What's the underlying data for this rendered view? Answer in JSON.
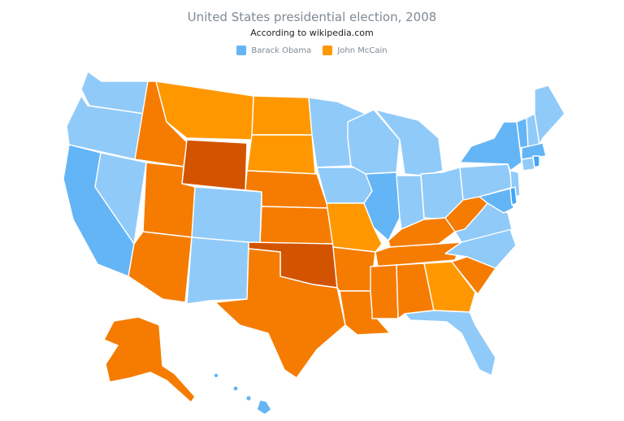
{
  "header": {
    "title": "United States presidential election, 2008",
    "subtitle": "According to wikipedia.com"
  },
  "legend": {
    "obama": {
      "label": "Barack Obama",
      "color": "#64b5f6"
    },
    "mccain": {
      "label": "John McCain",
      "color": "#ff9800"
    }
  },
  "palette": {
    "obama_light": "#90caf9",
    "obama_mid": "#64b5f6",
    "obama_dark": "#42a5f5",
    "mccain_light": "#ff9800",
    "mccain_mid": "#f57c00",
    "mccain_dark": "#d35400"
  },
  "map": {
    "states": [
      {
        "name": "Washington",
        "winner": "Obama"
      },
      {
        "name": "Oregon",
        "winner": "Obama"
      },
      {
        "name": "California",
        "winner": "Obama"
      },
      {
        "name": "Nevada",
        "winner": "Obama"
      },
      {
        "name": "Idaho",
        "winner": "McCain"
      },
      {
        "name": "Montana",
        "winner": "McCain"
      },
      {
        "name": "Wyoming",
        "winner": "McCain"
      },
      {
        "name": "Utah",
        "winner": "McCain"
      },
      {
        "name": "Arizona",
        "winner": "McCain"
      },
      {
        "name": "Colorado",
        "winner": "Obama"
      },
      {
        "name": "New Mexico",
        "winner": "Obama"
      },
      {
        "name": "North Dakota",
        "winner": "McCain"
      },
      {
        "name": "South Dakota",
        "winner": "McCain"
      },
      {
        "name": "Nebraska",
        "winner": "McCain"
      },
      {
        "name": "Kansas",
        "winner": "McCain"
      },
      {
        "name": "Oklahoma",
        "winner": "McCain"
      },
      {
        "name": "Texas",
        "winner": "McCain"
      },
      {
        "name": "Minnesota",
        "winner": "Obama"
      },
      {
        "name": "Iowa",
        "winner": "Obama"
      },
      {
        "name": "Missouri",
        "winner": "McCain"
      },
      {
        "name": "Arkansas",
        "winner": "McCain"
      },
      {
        "name": "Louisiana",
        "winner": "McCain"
      },
      {
        "name": "Wisconsin",
        "winner": "Obama"
      },
      {
        "name": "Illinois",
        "winner": "Obama"
      },
      {
        "name": "Michigan",
        "winner": "Obama"
      },
      {
        "name": "Indiana",
        "winner": "Obama"
      },
      {
        "name": "Ohio",
        "winner": "Obama"
      },
      {
        "name": "Kentucky",
        "winner": "McCain"
      },
      {
        "name": "Tennessee",
        "winner": "McCain"
      },
      {
        "name": "Mississippi",
        "winner": "McCain"
      },
      {
        "name": "Alabama",
        "winner": "McCain"
      },
      {
        "name": "Georgia",
        "winner": "McCain"
      },
      {
        "name": "Florida",
        "winner": "Obama"
      },
      {
        "name": "South Carolina",
        "winner": "McCain"
      },
      {
        "name": "North Carolina",
        "winner": "Obama"
      },
      {
        "name": "Virginia",
        "winner": "Obama"
      },
      {
        "name": "West Virginia",
        "winner": "McCain"
      },
      {
        "name": "Pennsylvania",
        "winner": "Obama"
      },
      {
        "name": "New York",
        "winner": "Obama"
      },
      {
        "name": "New Jersey",
        "winner": "Obama"
      },
      {
        "name": "Maryland",
        "winner": "Obama"
      },
      {
        "name": "Delaware",
        "winner": "Obama"
      },
      {
        "name": "Vermont",
        "winner": "Obama"
      },
      {
        "name": "New Hampshire",
        "winner": "Obama"
      },
      {
        "name": "Maine",
        "winner": "Obama"
      },
      {
        "name": "Massachusetts",
        "winner": "Obama"
      },
      {
        "name": "Connecticut",
        "winner": "Obama"
      },
      {
        "name": "Rhode Island",
        "winner": "Obama"
      },
      {
        "name": "Alaska",
        "winner": "McCain"
      },
      {
        "name": "Hawaii",
        "winner": "Obama"
      }
    ]
  }
}
